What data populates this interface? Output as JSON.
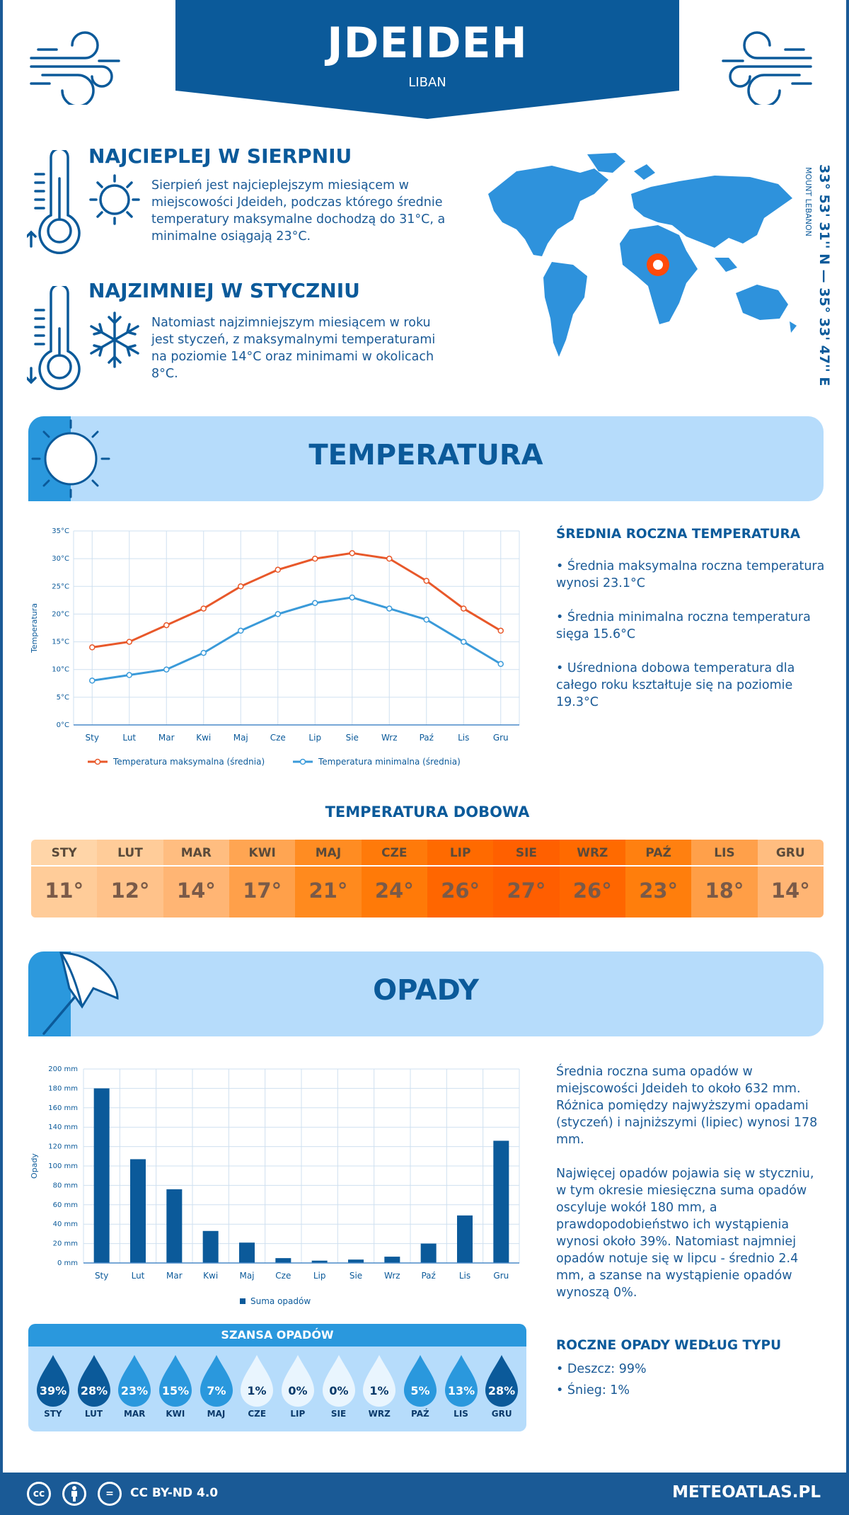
{
  "header": {
    "city": "JDEIDEH",
    "country": "LIBAN"
  },
  "hottest": {
    "title": "NAJCIEPLEJ W SIERPNIU",
    "text": "Sierpień jest najcieplejszym miesiącem w miejscowości Jdeideh, podczas którego średnie temperatury maksymalne dochodzą do 31°C, a minimalne osiągają 23°C."
  },
  "coldest": {
    "title": "NAJZIMNIEJ W STYCZNIU",
    "text": "Natomiast najzimniejszym miesiącem w roku jest styczeń, z maksymalnymi temperaturami na poziomie 14°C oraz minimami w okolicach 8°C."
  },
  "location": {
    "coords": "33° 53' 31'' N — 35° 33' 47'' E",
    "region": "MOUNT LEBANON"
  },
  "temperature": {
    "title": "TEMPERATURA",
    "side_title": "ŚREDNIA ROCZNA TEMPERATURA",
    "bullets": [
      "• Średnia maksymalna roczna temperatura wynosi 23.1°C",
      "• Średnia minimalna roczna temperatura sięga 15.6°C",
      "• Uśredniona dobowa temperatura dla całego roku kształtuje się na poziomie 19.3°C"
    ],
    "daily_title": "TEMPERATURA DOBOWA",
    "daily": [
      {
        "m": "STY",
        "v": "11°",
        "c1": "#ffd5a8",
        "c2": "#ffcc99"
      },
      {
        "m": "LUT",
        "v": "12°",
        "c1": "#ffcc99",
        "c2": "#ffc28a"
      },
      {
        "m": "MAR",
        "v": "14°",
        "c1": "#ffbd80",
        "c2": "#ffb574"
      },
      {
        "m": "KWI",
        "v": "17°",
        "c1": "#ffa552",
        "c2": "#ffa04a"
      },
      {
        "m": "MAJ",
        "v": "21°",
        "c1": "#ff8c22",
        "c2": "#ff8a1e"
      },
      {
        "m": "CZE",
        "v": "24°",
        "c1": "#ff7a0a",
        "c2": "#ff7a08"
      },
      {
        "m": "LIP",
        "v": "26°",
        "c1": "#ff6a00",
        "c2": "#ff6600"
      },
      {
        "m": "SIE",
        "v": "27°",
        "c1": "#ff6000",
        "c2": "#ff5e00"
      },
      {
        "m": "WRZ",
        "v": "26°",
        "c1": "#ff6a00",
        "c2": "#ff6600"
      },
      {
        "m": "PAŹ",
        "v": "23°",
        "c1": "#ff8010",
        "c2": "#ff7e0c"
      },
      {
        "m": "LIS",
        "v": "18°",
        "c1": "#ffa04a",
        "c2": "#ff9e46"
      },
      {
        "m": "GRU",
        "v": "14°",
        "c1": "#ffbd80",
        "c2": "#ffb574"
      }
    ]
  },
  "precipitation": {
    "title": "OPADY",
    "text1": "Średnia roczna suma opadów w miejscowości Jdeideh to około 632 mm. Różnica pomiędzy najwyższymi opadami (styczeń) i najniższymi (lipiec) wynosi 178 mm.",
    "text2": "Najwięcej opadów pojawia się w styczniu, w tym okresie miesięczna suma opadów oscyluje wokół 180 mm, a prawdopodobieństwo ich wystąpienia wynosi około 39%. Natomiast najmniej opadów notuje się w lipcu - średnio 2.4 mm, a szanse na wystąpienie opadów wynoszą 0%.",
    "types_title": "ROCZNE OPADY WEDŁUG TYPU",
    "types": [
      "• Deszcz: 99%",
      "• Śnieg: 1%"
    ],
    "chance_title": "SZANSA OPADÓW",
    "chance": [
      {
        "m": "STY",
        "v": "39%",
        "c": "#0b5a9a"
      },
      {
        "m": "LUT",
        "v": "28%",
        "c": "#0b5a9a"
      },
      {
        "m": "MAR",
        "v": "23%",
        "c": "#2a98dd"
      },
      {
        "m": "KWI",
        "v": "15%",
        "c": "#2a98dd"
      },
      {
        "m": "MAJ",
        "v": "7%",
        "c": "#2a98dd"
      },
      {
        "m": "CZE",
        "v": "1%",
        "c": "#e9f5fe"
      },
      {
        "m": "LIP",
        "v": "0%",
        "c": "#e9f5fe"
      },
      {
        "m": "SIE",
        "v": "0%",
        "c": "#e9f5fe"
      },
      {
        "m": "WRZ",
        "v": "1%",
        "c": "#e9f5fe"
      },
      {
        "m": "PAŹ",
        "v": "5%",
        "c": "#2a98dd"
      },
      {
        "m": "LIS",
        "v": "13%",
        "c": "#2a98dd"
      },
      {
        "m": "GRU",
        "v": "28%",
        "c": "#0b5a9a"
      }
    ]
  },
  "chart_data": [
    {
      "type": "line",
      "categories": [
        "Sty",
        "Lut",
        "Mar",
        "Kwi",
        "Maj",
        "Cze",
        "Lip",
        "Sie",
        "Wrz",
        "Paź",
        "Lis",
        "Gru"
      ],
      "series": [
        {
          "name": "Temperatura maksymalna (średnia)",
          "values": [
            14,
            15,
            18,
            21,
            25,
            28,
            30,
            31,
            30,
            26,
            21,
            17
          ],
          "color": "#e8582a"
        },
        {
          "name": "Temperatura minimalna (średnia)",
          "values": [
            8,
            9,
            10,
            13,
            17,
            20,
            22,
            23,
            21,
            19,
            15,
            11
          ],
          "color": "#3a9ad9"
        }
      ],
      "ylabel": "Temperatura",
      "yticks": [
        "0°C",
        "5°C",
        "10°C",
        "15°C",
        "20°C",
        "25°C",
        "30°C",
        "35°C"
      ],
      "ylim": [
        0,
        35
      ],
      "grid": true,
      "legend": "bottom"
    },
    {
      "type": "bar",
      "categories": [
        "Sty",
        "Lut",
        "Mar",
        "Kwi",
        "Maj",
        "Cze",
        "Lip",
        "Sie",
        "Wrz",
        "Paź",
        "Lis",
        "Gru"
      ],
      "series": [
        {
          "name": "Suma opadów",
          "values": [
            180,
            107,
            76,
            33,
            21,
            5,
            2.4,
            3.5,
            6.5,
            20,
            49,
            126
          ],
          "color": "#0b5a9a"
        }
      ],
      "ylabel": "Opady",
      "yticks": [
        "0 mm",
        "20 mm",
        "40 mm",
        "60 mm",
        "80 mm",
        "100 mm",
        "120 mm",
        "140 mm",
        "160 mm",
        "180 mm",
        "200 mm"
      ],
      "ylim": [
        0,
        200
      ],
      "grid": true,
      "legend": "bottom"
    }
  ],
  "footer": {
    "license": "CC BY-ND 4.0",
    "site": "METEOATLAS.PL",
    "cc": "cc",
    "eq": "="
  }
}
